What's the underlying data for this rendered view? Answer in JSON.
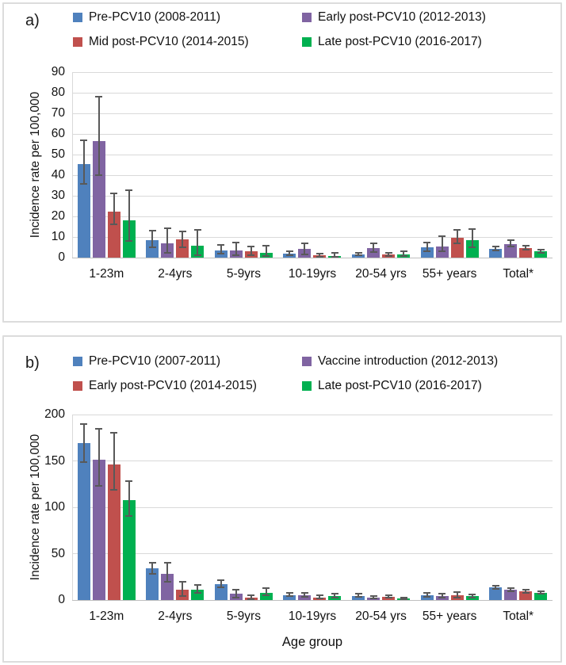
{
  "figure_note": "Two-panel grouped bar chart of invasive pneumococcal disease incidence by age group across PCV10 vaccination periods; error bars show 95% confidence intervals",
  "shared": {
    "categories": [
      "1-23m",
      "2-4yrs",
      "5-9yrs",
      "10-19yrs",
      "20-54 yrs",
      "55+ years",
      "Total*"
    ],
    "ylabel": "Incidence rate per 100,000",
    "error_bar_color": "#595959",
    "gridline_color": "#d9d9d9",
    "accent_colors": {
      "blue": "#4f81bd",
      "purple": "#8064a2",
      "red": "#c0504d",
      "green": "#00b050"
    }
  },
  "chart_data": [
    {
      "type": "bar",
      "panel_label": "a)",
      "ylabel": "Incidence rate per 100,000",
      "xlabel": "",
      "ylim": [
        0,
        90
      ],
      "ytick_step": 10,
      "grid": true,
      "legend_position": "top",
      "error_bars": true,
      "categories": [
        "1-23m",
        "2-4yrs",
        "5-9yrs",
        "10-19yrs",
        "20-54 yrs",
        "55+ years",
        "Total*"
      ],
      "series": [
        {
          "name": "Pre-PCV10 (2008-2011)",
          "color": "#4f81bd",
          "values": [
            45.5,
            8.3,
            3.5,
            1.8,
            1.5,
            5.0,
            4.4
          ],
          "ci_low": [
            35.8,
            5.0,
            1.8,
            1.0,
            1.0,
            3.2,
            3.4
          ],
          "ci_high": [
            57.0,
            13.0,
            6.1,
            3.2,
            2.4,
            7.5,
            5.5
          ]
        },
        {
          "name": "Early post-PCV10 (2012-2013)",
          "color": "#8064a2",
          "values": [
            56.5,
            6.9,
            3.6,
            4.3,
            4.6,
            5.4,
            6.7
          ],
          "ci_low": [
            40.0,
            2.4,
            1.3,
            1.5,
            2.8,
            3.2,
            5.5
          ],
          "ci_high": [
            78.0,
            14.2,
            7.4,
            7.1,
            6.9,
            10.5,
            8.5
          ]
        },
        {
          "name": "Mid post-PCV10 (2014-2015)",
          "color": "#c0504d",
          "values": [
            22.5,
            8.7,
            3.0,
            1.0,
            1.4,
            9.5,
            4.8
          ],
          "ci_low": [
            16.2,
            5.0,
            1.3,
            0.4,
            0.8,
            7.0,
            3.8
          ],
          "ci_high": [
            31.3,
            12.7,
            5.2,
            2.1,
            2.4,
            13.5,
            5.9
          ]
        },
        {
          "name": "Late post-PCV10 (2016-2017)",
          "color": "#00b050",
          "values": [
            18.0,
            5.8,
            2.2,
            0.7,
            1.4,
            8.4,
            3.0
          ],
          "ci_low": [
            8.1,
            1.0,
            0.6,
            0.2,
            0.9,
            4.9,
            2.2
          ],
          "ci_high": [
            32.7,
            13.5,
            5.8,
            2.4,
            2.9,
            14.0,
            4.0
          ]
        }
      ]
    },
    {
      "type": "bar",
      "panel_label": "b)",
      "ylabel": "Incidence rate per 100,000",
      "xlabel": "Age group",
      "ylim": [
        0,
        200
      ],
      "ytick_step": 50,
      "grid": true,
      "legend_position": "top",
      "error_bars": true,
      "categories": [
        "1-23m",
        "2-4yrs",
        "5-9yrs",
        "10-19yrs",
        "20-54 yrs",
        "55+ years",
        "Total*"
      ],
      "series": [
        {
          "name": "Pre-PCV10 (2007-2011)",
          "color": "#4f81bd",
          "values": [
            169,
            34,
            17,
            5.5,
            4.5,
            5.5,
            13.5
          ],
          "ci_low": [
            149,
            28,
            13.5,
            4.0,
            3.5,
            3.7,
            12.4
          ],
          "ci_high": [
            190,
            40,
            21.0,
            8.0,
            6.5,
            8.0,
            15.5
          ]
        },
        {
          "name": "Vaccine introduction (2012-2013)",
          "color": "#8064a2",
          "values": [
            151,
            28,
            6.5,
            5.0,
            2.5,
            4.0,
            10.7
          ],
          "ci_low": [
            123,
            20,
            2.5,
            3.5,
            1.7,
            2.3,
            9.7
          ],
          "ci_high": [
            185,
            40,
            11.0,
            7.5,
            4.0,
            6.8,
            13.2
          ]
        },
        {
          "name": "Early post-PCV10 (2014-2015)",
          "color": "#c0504d",
          "values": [
            146,
            10.8,
            2.5,
            2.8,
            3.2,
            5.2,
            9.0
          ],
          "ci_low": [
            119,
            4.0,
            0.5,
            1.5,
            2.2,
            2.8,
            8.0
          ],
          "ci_high": [
            180,
            20,
            5.0,
            5.5,
            5.0,
            8.8,
            11.3
          ]
        },
        {
          "name": "Late post-PCV10 (2016-2017)",
          "color": "#00b050",
          "values": [
            108,
            11.5,
            8.0,
            4.0,
            1.7,
            4.0,
            7.9
          ],
          "ci_low": [
            91,
            7.6,
            5.0,
            2.5,
            1.0,
            2.5,
            7.0
          ],
          "ci_high": [
            128,
            16.3,
            12.5,
            6.5,
            2.8,
            6.2,
            9.6
          ]
        }
      ]
    }
  ]
}
